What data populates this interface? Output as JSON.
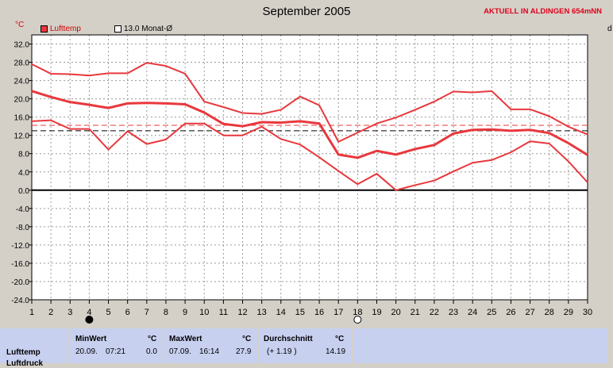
{
  "title": "September 2005",
  "station": "AKTUELL IN ALDINGEN 654mNN",
  "unit_left": "°C",
  "unit_right": "d",
  "legend": {
    "series_label": "Lufttemp",
    "mean_label": "13.0 Monat-Ø"
  },
  "colors": {
    "series": "#e8383d",
    "grid": "#999999",
    "plot_bg": "#ffffff",
    "page_bg": "#d4d0c8",
    "stats_bg": "#c8d0f0",
    "title_red": "#e0001a"
  },
  "moon_markers": [
    {
      "day": 4,
      "icon": "new-moon-icon"
    },
    {
      "day": 18,
      "icon": "full-moon-icon"
    }
  ],
  "stats": {
    "row_label": "Lufttemp",
    "row_label_2": "Luftdruck",
    "min": {
      "header": "MinWert",
      "unit": "°C",
      "date": "20.09.",
      "time": "07:21",
      "value": "0.0"
    },
    "max": {
      "header": "MaxWert",
      "unit": "°C",
      "date": "07.09.",
      "time": "16:14",
      "value": "27.9"
    },
    "avg": {
      "header": "Durchschnitt",
      "unit": "°C",
      "diff": "(+ 1.19 )",
      "value": "14.19"
    }
  },
  "chart_data": {
    "type": "line",
    "title": "September 2005",
    "xlabel": "",
    "ylabel": "°C",
    "x": [
      1,
      2,
      3,
      4,
      5,
      6,
      7,
      8,
      9,
      10,
      11,
      12,
      13,
      14,
      15,
      16,
      17,
      18,
      19,
      20,
      21,
      22,
      23,
      24,
      25,
      26,
      27,
      28,
      29,
      30
    ],
    "ylim": [
      -24,
      34
    ],
    "yticks": [
      32,
      28,
      24,
      20,
      16,
      12,
      8,
      4,
      0,
      -4,
      -8,
      -12,
      -16,
      -20,
      -24
    ],
    "ytick_labels": [
      "32.0",
      "28.0",
      "24.0",
      "20.0",
      "16.0",
      "12.0",
      "8.0",
      "4.0",
      "0.0",
      "-4.0",
      "-8.0",
      "-12.0",
      "-16.0",
      "-20.0",
      "-24.0"
    ],
    "grid": true,
    "legend_position": "top-left",
    "series": [
      {
        "name": "Lufttemp",
        "role": "max",
        "values": [
          27.6,
          25.5,
          25.4,
          25.1,
          25.6,
          25.6,
          27.9,
          27.2,
          25.5,
          19.4,
          18.2,
          16.9,
          16.7,
          17.6,
          20.5,
          18.6,
          10.6,
          12.6,
          14.6,
          15.9,
          17.6,
          19.4,
          21.6,
          21.4,
          21.7,
          17.7,
          17.7,
          16.2,
          13.9,
          12.2
        ]
      },
      {
        "role": "mean",
        "values": [
          21.7,
          20.4,
          19.3,
          18.7,
          18.0,
          19.0,
          19.1,
          19.0,
          18.8,
          17.0,
          14.5,
          14.0,
          14.9,
          14.8,
          15.1,
          14.6,
          7.8,
          7.1,
          8.6,
          7.8,
          9.0,
          9.9,
          12.4,
          13.2,
          13.3,
          13.0,
          13.2,
          12.5,
          10.3,
          7.7
        ]
      },
      {
        "role": "min",
        "values": [
          15.1,
          15.3,
          13.4,
          13.4,
          8.9,
          12.9,
          10.1,
          11.1,
          14.6,
          14.6,
          12.0,
          12.0,
          13.9,
          11.2,
          10.0,
          7.2,
          4.2,
          1.3,
          3.6,
          0.0,
          1.1,
          2.1,
          4.1,
          6.0,
          6.6,
          8.3,
          10.7,
          10.2,
          6.3,
          1.7
        ]
      }
    ],
    "reference_lines": [
      {
        "value": 14.2,
        "style": "dashed",
        "color": "#e8383d"
      },
      {
        "value": 13.0,
        "style": "dashed",
        "color": "#000000"
      }
    ]
  }
}
